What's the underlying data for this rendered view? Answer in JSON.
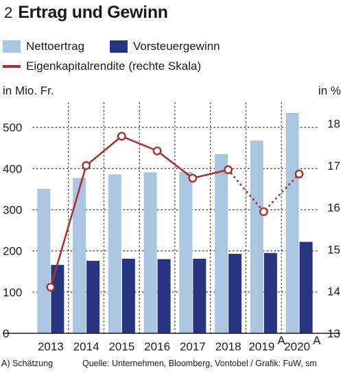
{
  "header": {
    "figure_number": "2",
    "title": "Ertrag und Gewinn"
  },
  "legend": {
    "items": [
      {
        "label": "Nettoertrag",
        "color": "#a9c5e0",
        "kind": "bar"
      },
      {
        "label": "Vorsteuergewinn",
        "color": "#27347f",
        "kind": "bar"
      },
      {
        "label": "Eigenkapitalrendite (rechte Skala)",
        "color": "#a83232",
        "kind": "line"
      }
    ]
  },
  "chart_data": {
    "type": "bar",
    "categories": [
      "2013",
      "2014",
      "2015",
      "2016",
      "2017",
      "2018",
      "2019",
      "2020"
    ],
    "category_superscripts": [
      "",
      "",
      "",
      "",
      "",
      "",
      "A",
      "A"
    ],
    "series": [
      {
        "name": "Nettoertrag",
        "axis": "left",
        "type": "bar",
        "color": "#a9c5e0",
        "values": [
          351,
          377,
          386,
          391,
          392,
          435,
          468,
          535
        ]
      },
      {
        "name": "Vorsteuergewinn",
        "axis": "left",
        "type": "bar",
        "color": "#27347f",
        "values": [
          166,
          176,
          181,
          180,
          181,
          193,
          195,
          222
        ]
      },
      {
        "name": "Eigenkapitalrendite (rechte Skala)",
        "axis": "right",
        "type": "line",
        "color": "#a83232",
        "values": [
          14.1,
          17.0,
          17.7,
          17.35,
          16.7,
          16.9,
          15.9,
          16.8
        ],
        "dotted_from_index": 5
      }
    ],
    "left_axis": {
      "label": "in Mio. Fr.",
      "ylim": [
        0,
        560
      ],
      "ticks": [
        0,
        100,
        200,
        300,
        400,
        500
      ]
    },
    "right_axis": {
      "label": "in %",
      "ylim": [
        13,
        18.5
      ],
      "ticks": [
        13,
        14,
        15,
        16,
        17,
        18
      ]
    },
    "grid": true
  },
  "footer": {
    "note": "A) Schätzung",
    "source": "Quelle: Unternehmen, Bloomberg, Vontobel / Grafik: FuW, sm"
  }
}
